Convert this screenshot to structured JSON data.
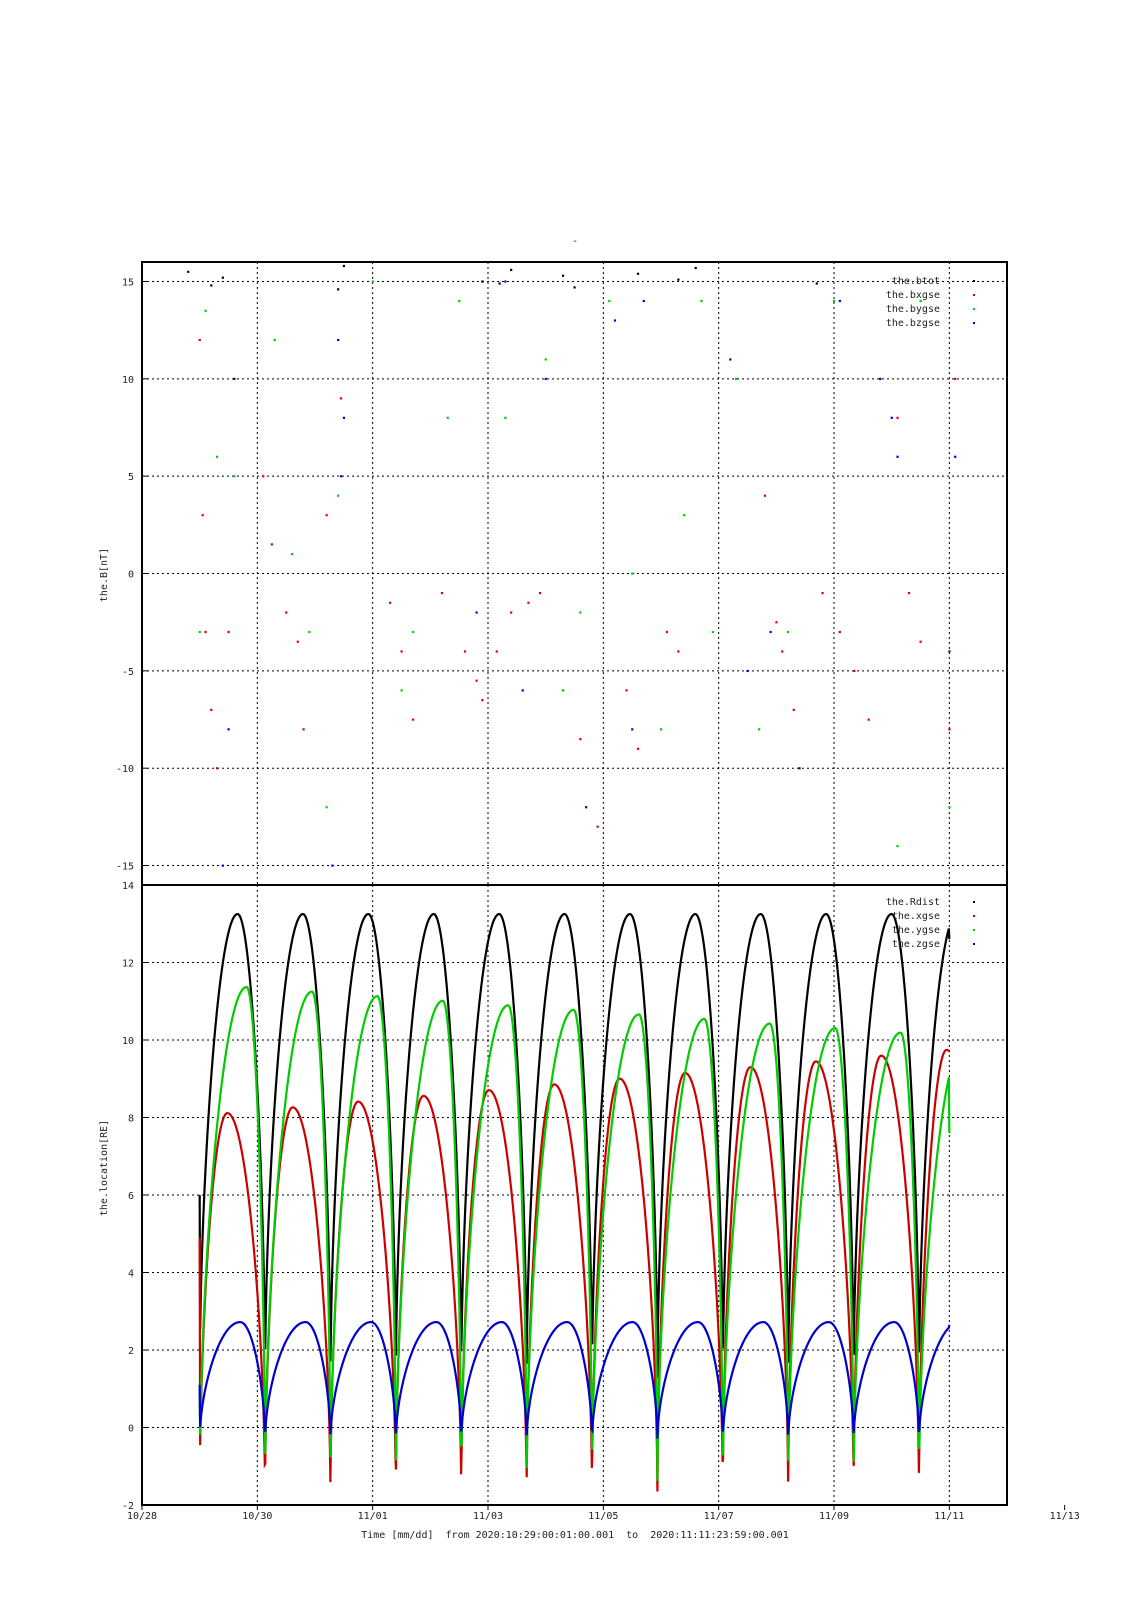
{
  "figure": {
    "top_title": "-",
    "xlabel_prefix": "Time [mm/dd]  from ",
    "time_start": "2020:10:29:00:01:00.001",
    "xlabel_mid": "  to  ",
    "time_end": "2020:11:11:23:59:00.001"
  },
  "chart_data": [
    {
      "type": "scatter",
      "title": "",
      "xlabel": "Time [mm/dd]",
      "ylabel": "the.B[nT]",
      "xlim": [
        0,
        15
      ],
      "ylim": [
        -16,
        16
      ],
      "x_origin_date": "10/28",
      "x_ticks": [
        "10/28",
        "10/30",
        "11/01",
        "11/03",
        "11/05",
        "11/07",
        "11/09",
        "11/11",
        "11/13"
      ],
      "y_ticks": [
        -15,
        -10,
        -5,
        0,
        5,
        10,
        15
      ],
      "grid": true,
      "legend_position": "top-right",
      "series": [
        {
          "name": "the.btot",
          "color": "#000000",
          "x": [
            0.8,
            1.2,
            1.4,
            3.4,
            3.5,
            5.9,
            6.2,
            6.4,
            7.3,
            7.5,
            8.6,
            9.3,
            9.6,
            11.7
          ],
          "y": [
            15.5,
            14.8,
            15.2,
            14.6,
            15.8,
            15.0,
            14.9,
            15.6,
            15.3,
            14.7,
            15.4,
            15.1,
            15.7,
            14.9
          ]
        },
        {
          "name": "the.bxgse",
          "color": "#dd0000",
          "x": [
            1.0,
            1.05,
            1.1,
            1.2,
            1.3,
            1.5,
            2.1,
            2.25,
            2.5,
            2.7,
            2.8,
            3.2,
            3.45,
            4.3,
            4.5,
            4.7,
            5.2,
            5.6,
            5.8,
            5.9,
            6.15,
            6.4,
            6.7,
            6.9,
            7.3,
            7.6,
            7.9,
            8.4,
            8.6,
            9.1,
            9.3,
            10.8,
            11.0,
            11.1,
            11.3,
            11.8,
            12.1,
            12.35,
            12.6,
            13.1,
            13.3,
            13.5,
            14.0,
            14.1
          ],
          "y": [
            12.0,
            3.0,
            -3.0,
            -7.0,
            -10.0,
            -3.0,
            5.0,
            1.5,
            -2.0,
            -3.5,
            -8.0,
            3.0,
            9.0,
            -1.5,
            -4.0,
            -7.5,
            -1.0,
            -4.0,
            -5.5,
            -6.5,
            -4.0,
            -2.0,
            -1.5,
            -1.0,
            -6.0,
            -8.5,
            -13.0,
            -6.0,
            -9.0,
            -3.0,
            -4.0,
            4.0,
            -2.5,
            -4.0,
            -7.0,
            -1.0,
            -3.0,
            -5.0,
            -7.5,
            8.0,
            -1.0,
            -3.5,
            -8.0,
            10.0
          ]
        },
        {
          "name": "the.bygse",
          "color": "#00cc00",
          "x": [
            1.0,
            1.1,
            1.3,
            1.6,
            2.3,
            2.6,
            2.9,
            3.2,
            3.4,
            4.0,
            4.5,
            4.7,
            5.3,
            5.5,
            6.3,
            7.0,
            7.3,
            7.6,
            8.1,
            8.5,
            9.0,
            9.4,
            9.7,
            9.9,
            10.3,
            10.7,
            11.2,
            12.0,
            12.8,
            13.1,
            13.5,
            14.0
          ],
          "y": [
            -3.0,
            13.5,
            6.0,
            5.0,
            12.0,
            1.0,
            -3.0,
            -12.0,
            4.0,
            15.0,
            -6.0,
            -3.0,
            8.0,
            14.0,
            8.0,
            11.0,
            -6.0,
            -2.0,
            14.0,
            0.0,
            -8.0,
            3.0,
            14.0,
            -3.0,
            10.0,
            -8.0,
            -3.0,
            14.0,
            10.0,
            -14.0,
            14.0,
            -12.0
          ]
        },
        {
          "name": "the.bzgse",
          "color": "#0000cc",
          "x": [
            1.4,
            1.5,
            1.6,
            3.3,
            3.4,
            3.45,
            3.5,
            5.8,
            6.3,
            6.6,
            7.0,
            7.7,
            8.2,
            8.5,
            8.7,
            10.2,
            10.5,
            10.9,
            11.4,
            12.1,
            12.8,
            13.0,
            13.1,
            14.0,
            14.1
          ],
          "y": [
            -15.0,
            -8.0,
            10.0,
            -15.0,
            12.0,
            5.0,
            8.0,
            -2.0,
            15.0,
            -6.0,
            10.0,
            -12.0,
            13.0,
            -8.0,
            14.0,
            11.0,
            -5.0,
            -3.0,
            -10.0,
            14.0,
            10.0,
            8.0,
            6.0,
            -4.0,
            6.0
          ]
        }
      ]
    },
    {
      "type": "line",
      "title": "",
      "xlabel": "Time [mm/dd]",
      "ylabel": "the.location[RE]",
      "xlim": [
        0,
        15
      ],
      "ylim": [
        -2,
        14
      ],
      "x_ticks": [
        "10/28",
        "10/30",
        "11/01",
        "11/03",
        "11/05",
        "11/07",
        "11/09",
        "11/11",
        "11/13"
      ],
      "y_ticks": [
        -2,
        0,
        2,
        4,
        6,
        8,
        10,
        12,
        14
      ],
      "grid": true,
      "legend_position": "top-right",
      "orbit_period_days": 1.134,
      "x_range": [
        1.0,
        14.0
      ],
      "series": [
        {
          "name": "the.Rdist",
          "color": "#000000",
          "perigee": 1.15,
          "apogee": 13.25,
          "apogee_phase": 0.58
        },
        {
          "name": "the.xgse",
          "color": "#cc0000",
          "min": -1.8,
          "max": [
            8.05,
            9.75
          ],
          "peak_phase": 0.42
        },
        {
          "name": "the.ygse",
          "color": "#00cc00",
          "min": -1.5,
          "max": [
            11.45,
            10.1
          ],
          "peak_phase": 0.72
        },
        {
          "name": "the.zgse",
          "color": "#0000cc",
          "min": -0.32,
          "max": 2.72,
          "peak_phase": 0.62
        }
      ],
      "series_start": {
        "the.Rdist": 6.0,
        "the.xgse": 4.9,
        "the.ygse": 1.0,
        "the.zgse": 1.1
      },
      "series_end": {
        "the.Rdist": 12.6,
        "the.xgse": 9.75,
        "the.ygse": 7.6,
        "the.zgse": 2.65
      }
    }
  ]
}
